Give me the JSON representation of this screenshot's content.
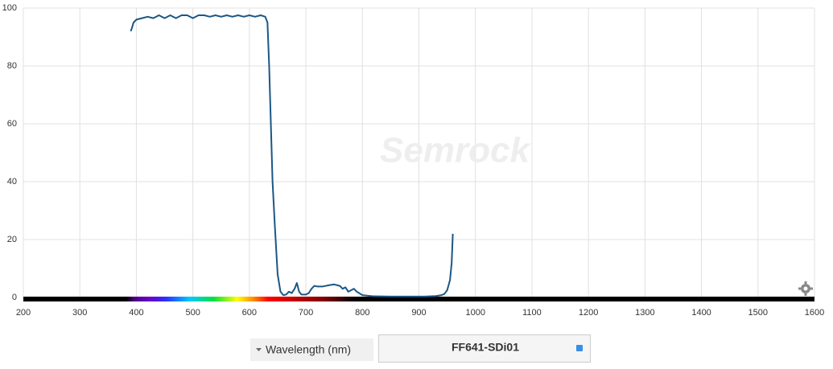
{
  "chart_data": {
    "type": "line",
    "watermark": "Semrock",
    "x_label": "Wavelength (nm)",
    "x": [
      390,
      392,
      395,
      400,
      410,
      420,
      430,
      440,
      450,
      460,
      470,
      480,
      490,
      500,
      510,
      520,
      530,
      540,
      550,
      560,
      570,
      580,
      590,
      600,
      610,
      620,
      628,
      632,
      635,
      638,
      641,
      645,
      650,
      655,
      660,
      665,
      670,
      675,
      680,
      684,
      688,
      692,
      700,
      705,
      710,
      715,
      720,
      730,
      740,
      750,
      760,
      765,
      770,
      775,
      780,
      785,
      790,
      800,
      820,
      850,
      880,
      910,
      930,
      940,
      945,
      950,
      955,
      958,
      960
    ],
    "series": [
      {
        "name": "FF641-SDi01",
        "color": "#1a5786",
        "values": [
          92,
          93,
          95,
          96,
          96.5,
          97,
          96.5,
          97.5,
          96.5,
          97.5,
          96.5,
          97.5,
          97.5,
          96.5,
          97.5,
          97.5,
          97,
          97.5,
          97,
          97.5,
          97,
          97.5,
          97,
          97.5,
          97,
          97.5,
          97,
          95,
          80,
          60,
          40,
          25,
          8,
          2,
          0.8,
          1,
          2,
          1.5,
          3,
          5,
          2,
          1,
          1,
          1.5,
          3,
          4,
          3.8,
          3.8,
          4.2,
          4.5,
          4,
          3,
          3.5,
          2,
          2.5,
          3,
          2,
          0.8,
          0.4,
          0.3,
          0.3,
          0.3,
          0.5,
          0.8,
          1.2,
          2.5,
          6,
          12,
          22
        ]
      }
    ],
    "xlim": [
      200,
      1600
    ],
    "xticks": [
      200,
      300,
      400,
      500,
      600,
      700,
      800,
      900,
      1000,
      1100,
      1200,
      1300,
      1400,
      1500,
      1600
    ],
    "ylim": [
      0,
      100
    ],
    "yticks": [
      0,
      20,
      40,
      60,
      80,
      100
    ],
    "grid": true
  }
}
